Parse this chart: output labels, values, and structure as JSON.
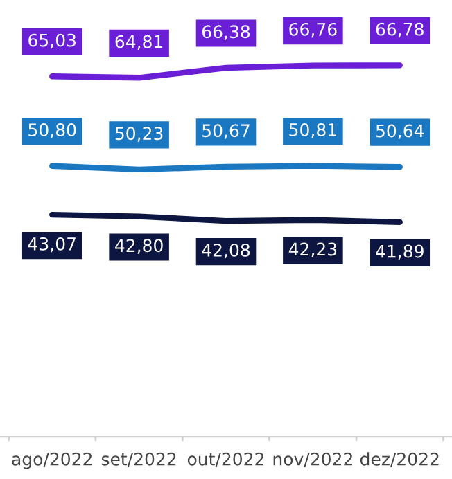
{
  "chart_data": {
    "type": "line",
    "categories": [
      "ago/2022",
      "set/2022",
      "out/2022",
      "nov/2022",
      "dez/2022"
    ],
    "series": [
      {
        "color": "#6a1fd6",
        "values": [
          65.03,
          64.81,
          66.38,
          66.76,
          66.78
        ],
        "value_labels": [
          "65,03",
          "64,81",
          "66,38",
          "66,76",
          "66,78"
        ]
      },
      {
        "color": "#1a78c2",
        "values": [
          50.8,
          50.23,
          50.67,
          50.81,
          50.64
        ],
        "value_labels": [
          "50,80",
          "50,23",
          "50,67",
          "50,81",
          "50,64"
        ]
      },
      {
        "color": "#0c1640",
        "values": [
          43.07,
          42.8,
          42.08,
          42.23,
          41.89
        ],
        "value_labels": [
          "43,07",
          "42,80",
          "42,08",
          "42,23",
          "41,89"
        ]
      }
    ],
    "tick_labels": "x"
  }
}
